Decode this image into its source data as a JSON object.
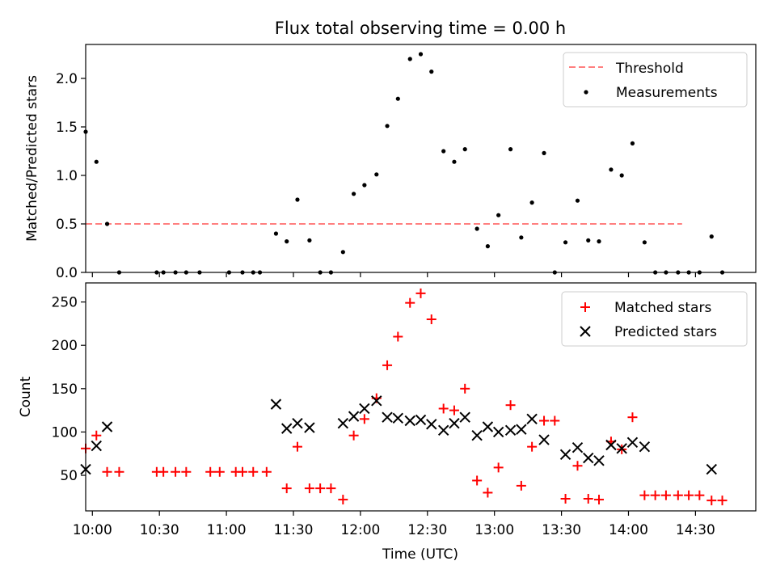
{
  "figure": {
    "title": "Flux total observing time = 0.00 h"
  },
  "chart_data": [
    {
      "type": "scatter",
      "title": "Flux total observing time = 0.00 h",
      "xlabel": "",
      "ylabel": "Matched/Predicted stars",
      "xlim": [
        -0.05,
        4.95
      ],
      "ylim": [
        0,
        2.35
      ],
      "yticks": [
        0.0,
        0.5,
        1.0,
        1.5,
        2.0
      ],
      "ytick_labels": [
        "0.0",
        "0.5",
        "1.0",
        "1.5",
        "2.0"
      ],
      "grid": false,
      "legend_position": "top-right",
      "threshold": {
        "name": "Threshold",
        "y": 0.5,
        "x_range": [
          -0.05,
          4.4
        ],
        "color": "#ff7f7f",
        "style": "dashed"
      },
      "series": [
        {
          "name": "Measurements",
          "color": "#000000",
          "marker": "dot",
          "points": [
            [
              -0.05,
              1.45
            ],
            [
              0.03,
              1.14
            ],
            [
              0.11,
              0.5
            ],
            [
              0.2,
              0.0
            ],
            [
              0.48,
              0.0
            ],
            [
              0.53,
              0.0
            ],
            [
              0.62,
              0.0
            ],
            [
              0.7,
              0.0
            ],
            [
              0.8,
              0.0
            ],
            [
              1.02,
              0.0
            ],
            [
              1.12,
              0.0
            ],
            [
              1.2,
              0.0
            ],
            [
              1.25,
              0.0
            ],
            [
              1.37,
              0.4
            ],
            [
              1.45,
              0.32
            ],
            [
              1.53,
              0.75
            ],
            [
              1.62,
              0.33
            ],
            [
              1.7,
              0.0
            ],
            [
              1.78,
              0.0
            ],
            [
              1.87,
              0.21
            ],
            [
              1.95,
              0.81
            ],
            [
              2.03,
              0.9
            ],
            [
              2.12,
              1.01
            ],
            [
              2.2,
              1.51
            ],
            [
              2.28,
              1.79
            ],
            [
              2.37,
              2.2
            ],
            [
              2.45,
              2.25
            ],
            [
              2.53,
              2.07
            ],
            [
              2.62,
              1.25
            ],
            [
              2.7,
              1.14
            ],
            [
              2.78,
              1.27
            ],
            [
              2.87,
              0.45
            ],
            [
              2.95,
              0.27
            ],
            [
              3.03,
              0.59
            ],
            [
              3.12,
              1.27
            ],
            [
              3.2,
              0.36
            ],
            [
              3.28,
              0.72
            ],
            [
              3.37,
              1.23
            ],
            [
              3.45,
              0.0
            ],
            [
              3.53,
              0.31
            ],
            [
              3.62,
              0.74
            ],
            [
              3.7,
              0.33
            ],
            [
              3.78,
              0.32
            ],
            [
              3.87,
              1.06
            ],
            [
              3.95,
              1.0
            ],
            [
              4.03,
              1.33
            ],
            [
              4.12,
              0.31
            ],
            [
              4.2,
              0.0
            ],
            [
              4.28,
              0.0
            ],
            [
              4.37,
              0.0
            ],
            [
              4.45,
              0.0
            ],
            [
              4.53,
              0.0
            ],
            [
              4.62,
              0.37
            ],
            [
              4.7,
              0.0
            ]
          ]
        }
      ]
    },
    {
      "type": "scatter",
      "title": "",
      "xlabel": "Time (UTC)",
      "ylabel": "Count",
      "xlim": [
        -0.05,
        4.95
      ],
      "ylim": [
        9,
        272
      ],
      "yticks": [
        50,
        100,
        150,
        200,
        250
      ],
      "ytick_labels": [
        "50",
        "100",
        "150",
        "200",
        "250"
      ],
      "xticks": [
        0,
        0.5,
        1.0,
        1.5,
        2.0,
        2.5,
        3.0,
        3.5,
        4.0,
        4.5
      ],
      "xtick_labels": [
        "10:00",
        "10:30",
        "11:00",
        "11:30",
        "12:00",
        "12:30",
        "13:00",
        "13:30",
        "14:00",
        "14:30"
      ],
      "grid": false,
      "legend_position": "top-right",
      "series": [
        {
          "name": "Matched stars",
          "color": "#ff0000",
          "marker": "plus",
          "points": [
            [
              -0.05,
              81
            ],
            [
              0.03,
              96
            ],
            [
              0.11,
              54
            ],
            [
              0.2,
              54
            ],
            [
              0.48,
              54
            ],
            [
              0.53,
              54
            ],
            [
              0.62,
              54
            ],
            [
              0.7,
              54
            ],
            [
              0.88,
              54
            ],
            [
              0.95,
              54
            ],
            [
              1.07,
              54
            ],
            [
              1.12,
              54
            ],
            [
              1.2,
              54
            ],
            [
              1.3,
              54
            ],
            [
              1.45,
              35
            ],
            [
              1.53,
              83
            ],
            [
              1.62,
              35
            ],
            [
              1.7,
              35
            ],
            [
              1.78,
              35
            ],
            [
              1.87,
              22
            ],
            [
              1.95,
              96
            ],
            [
              2.03,
              115
            ],
            [
              2.12,
              139
            ],
            [
              2.2,
              177
            ],
            [
              2.28,
              210
            ],
            [
              2.37,
              249
            ],
            [
              2.45,
              260
            ],
            [
              2.53,
              230
            ],
            [
              2.62,
              127
            ],
            [
              2.7,
              125
            ],
            [
              2.78,
              150
            ],
            [
              2.87,
              44
            ],
            [
              2.95,
              30
            ],
            [
              3.03,
              59
            ],
            [
              3.12,
              131
            ],
            [
              3.2,
              38
            ],
            [
              3.28,
              83
            ],
            [
              3.37,
              113
            ],
            [
              3.45,
              113
            ],
            [
              3.53,
              23
            ],
            [
              3.62,
              61
            ],
            [
              3.7,
              23
            ],
            [
              3.78,
              22
            ],
            [
              3.87,
              89
            ],
            [
              3.95,
              80
            ],
            [
              4.03,
              117
            ],
            [
              4.12,
              27
            ],
            [
              4.2,
              27
            ],
            [
              4.28,
              27
            ],
            [
              4.37,
              27
            ],
            [
              4.45,
              27
            ],
            [
              4.53,
              27
            ],
            [
              4.62,
              21
            ],
            [
              4.7,
              21
            ]
          ]
        },
        {
          "name": "Predicted stars",
          "color": "#000000",
          "marker": "x",
          "points": [
            [
              -0.05,
              57
            ],
            [
              0.03,
              84
            ],
            [
              0.11,
              106
            ],
            [
              1.37,
              132
            ],
            [
              1.45,
              104
            ],
            [
              1.53,
              110
            ],
            [
              1.62,
              105
            ],
            [
              1.87,
              110
            ],
            [
              1.95,
              118
            ],
            [
              2.03,
              127
            ],
            [
              2.12,
              136
            ],
            [
              2.2,
              117
            ],
            [
              2.28,
              116
            ],
            [
              2.37,
              113
            ],
            [
              2.45,
              114
            ],
            [
              2.53,
              109
            ],
            [
              2.62,
              102
            ],
            [
              2.7,
              110
            ],
            [
              2.78,
              117
            ],
            [
              2.87,
              96
            ],
            [
              2.95,
              106
            ],
            [
              3.03,
              100
            ],
            [
              3.12,
              102
            ],
            [
              3.2,
              103
            ],
            [
              3.28,
              115
            ],
            [
              3.37,
              91
            ],
            [
              3.53,
              74
            ],
            [
              3.62,
              82
            ],
            [
              3.7,
              70
            ],
            [
              3.78,
              67
            ],
            [
              3.87,
              85
            ],
            [
              3.95,
              81
            ],
            [
              4.03,
              88
            ],
            [
              4.12,
              83
            ],
            [
              4.62,
              57
            ]
          ]
        }
      ]
    }
  ]
}
